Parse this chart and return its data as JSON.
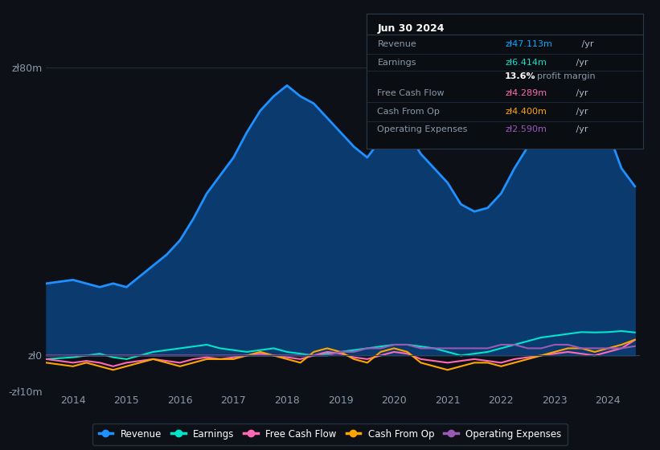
{
  "bg_color": "#0d1117",
  "plot_bg_color": "#0d1b2a",
  "grid_color": "#1e2d40",
  "title_box": {
    "date": "Jun 30 2024",
    "rows": [
      {
        "label": "Revenue",
        "value": "zł47.113m /yr",
        "value_color": "#00aaff"
      },
      {
        "label": "Earnings",
        "value": "zł6.414m /yr",
        "value_color": "#00e5cc"
      },
      {
        "label": "",
        "value": "13.6% profit margin",
        "value_color": "#ffffff"
      },
      {
        "label": "Free Cash Flow",
        "value": "zł4.289m /yr",
        "value_color": "#ff69b4"
      },
      {
        "label": "Cash From Op",
        "value": "zł4.400m /yr",
        "value_color": "#ffa500"
      },
      {
        "label": "Operating Expenses",
        "value": "zł2.590m /yr",
        "value_color": "#9b59b6"
      }
    ]
  },
  "ylim": [
    -10,
    90
  ],
  "yticks": [
    -10,
    0,
    80
  ],
  "ytick_labels": [
    "-zł10m",
    "zł0",
    "zł80m"
  ],
  "xlabel_years": [
    2014,
    2015,
    2016,
    2017,
    2018,
    2019,
    2020,
    2021,
    2022,
    2023,
    2024
  ],
  "series": {
    "revenue": {
      "color": "#1e90ff",
      "fill_color": "#0a3a6e",
      "linewidth": 2.0,
      "label": "Revenue",
      "x": [
        2013.5,
        2014.0,
        2014.25,
        2014.5,
        2014.75,
        2015.0,
        2015.25,
        2015.5,
        2015.75,
        2016.0,
        2016.25,
        2016.5,
        2016.75,
        2017.0,
        2017.25,
        2017.5,
        2017.75,
        2018.0,
        2018.25,
        2018.5,
        2018.75,
        2019.0,
        2019.25,
        2019.5,
        2019.75,
        2020.0,
        2020.25,
        2020.5,
        2020.75,
        2021.0,
        2021.25,
        2021.5,
        2021.75,
        2022.0,
        2022.25,
        2022.5,
        2022.75,
        2023.0,
        2023.25,
        2023.5,
        2023.75,
        2024.0,
        2024.25,
        2024.5
      ],
      "y": [
        20,
        21,
        20,
        19,
        20,
        19,
        22,
        25,
        28,
        32,
        38,
        45,
        50,
        55,
        62,
        68,
        72,
        75,
        72,
        70,
        66,
        62,
        58,
        55,
        60,
        65,
        62,
        56,
        52,
        48,
        42,
        40,
        41,
        45,
        52,
        58,
        62,
        66,
        70,
        72,
        68,
        62,
        52,
        47
      ]
    },
    "earnings": {
      "color": "#00e5cc",
      "linewidth": 1.5,
      "label": "Earnings",
      "x": [
        2013.5,
        2014.0,
        2014.25,
        2014.5,
        2014.75,
        2015.0,
        2015.25,
        2015.5,
        2015.75,
        2016.0,
        2016.25,
        2016.5,
        2016.75,
        2017.0,
        2017.25,
        2017.5,
        2017.75,
        2018.0,
        2018.25,
        2018.5,
        2018.75,
        2019.0,
        2019.25,
        2019.5,
        2019.75,
        2020.0,
        2020.25,
        2020.5,
        2020.75,
        2021.0,
        2021.25,
        2021.5,
        2021.75,
        2022.0,
        2022.25,
        2022.5,
        2022.75,
        2023.0,
        2023.25,
        2023.5,
        2023.75,
        2024.0,
        2024.25,
        2024.5
      ],
      "y": [
        -1,
        -0.5,
        0,
        0.5,
        -0.5,
        -1,
        0,
        1,
        1.5,
        2,
        2.5,
        3,
        2,
        1.5,
        1,
        1.5,
        2,
        1,
        0.5,
        0,
        0.5,
        1,
        1.5,
        2,
        2.5,
        3,
        3,
        2.5,
        2,
        1,
        0,
        0.5,
        1,
        2,
        3,
        4,
        5,
        5.5,
        6,
        6.5,
        6.4,
        6.5,
        6.8,
        6.4
      ]
    },
    "free_cash_flow": {
      "color": "#ff69b4",
      "linewidth": 1.5,
      "label": "Free Cash Flow",
      "x": [
        2013.5,
        2014.0,
        2014.25,
        2014.5,
        2014.75,
        2015.0,
        2015.25,
        2015.5,
        2015.75,
        2016.0,
        2016.25,
        2016.5,
        2016.75,
        2017.0,
        2017.25,
        2017.5,
        2017.75,
        2018.0,
        2018.25,
        2018.5,
        2018.75,
        2019.0,
        2019.25,
        2019.5,
        2019.75,
        2020.0,
        2020.25,
        2020.5,
        2020.75,
        2021.0,
        2021.25,
        2021.5,
        2021.75,
        2022.0,
        2022.25,
        2022.5,
        2022.75,
        2023.0,
        2023.25,
        2023.5,
        2023.75,
        2024.0,
        2024.25,
        2024.5
      ],
      "y": [
        -1,
        -2,
        -1.5,
        -2,
        -3,
        -2,
        -1.5,
        -1,
        -1.5,
        -2,
        -1,
        -0.5,
        -1,
        -0.5,
        0,
        0.5,
        0,
        -0.5,
        -1,
        0,
        1,
        0.5,
        -0.5,
        -1,
        0,
        1,
        0.5,
        -1,
        -1.5,
        -2,
        -1.5,
        -1,
        -1.5,
        -2,
        -1,
        -0.5,
        0,
        0.5,
        1,
        0.5,
        0,
        1,
        2,
        4.3
      ]
    },
    "cash_from_op": {
      "color": "#ffa500",
      "linewidth": 1.5,
      "label": "Cash From Op",
      "x": [
        2013.5,
        2014.0,
        2014.25,
        2014.5,
        2014.75,
        2015.0,
        2015.25,
        2015.5,
        2015.75,
        2016.0,
        2016.25,
        2016.5,
        2016.75,
        2017.0,
        2017.25,
        2017.5,
        2017.75,
        2018.0,
        2018.25,
        2018.5,
        2018.75,
        2019.0,
        2019.25,
        2019.5,
        2019.75,
        2020.0,
        2020.25,
        2020.5,
        2020.75,
        2021.0,
        2021.25,
        2021.5,
        2021.75,
        2022.0,
        2022.25,
        2022.5,
        2022.75,
        2023.0,
        2023.25,
        2023.5,
        2023.75,
        2024.0,
        2024.25,
        2024.5
      ],
      "y": [
        -2,
        -3,
        -2,
        -3,
        -4,
        -3,
        -2,
        -1,
        -2,
        -3,
        -2,
        -1,
        -1,
        -1,
        0,
        1,
        0,
        -1,
        -2,
        1,
        2,
        1,
        -1,
        -2,
        1,
        2,
        1,
        -2,
        -3,
        -4,
        -3,
        -2,
        -2,
        -3,
        -2,
        -1,
        0,
        1,
        2,
        2,
        1,
        2,
        3,
        4.4
      ]
    },
    "operating_expenses": {
      "color": "#9b59b6",
      "linewidth": 1.5,
      "label": "Operating Expenses",
      "x": [
        2013.5,
        2014.0,
        2014.25,
        2014.5,
        2014.75,
        2015.0,
        2015.25,
        2015.5,
        2015.75,
        2016.0,
        2016.25,
        2016.5,
        2016.75,
        2017.0,
        2017.25,
        2017.5,
        2017.75,
        2018.0,
        2018.25,
        2018.5,
        2018.75,
        2019.0,
        2019.25,
        2019.5,
        2019.75,
        2020.0,
        2020.25,
        2020.5,
        2020.75,
        2021.0,
        2021.25,
        2021.5,
        2021.75,
        2022.0,
        2022.25,
        2022.5,
        2022.75,
        2023.0,
        2023.25,
        2023.5,
        2023.75,
        2024.0,
        2024.25,
        2024.5
      ],
      "y": [
        0,
        0,
        0,
        0,
        0,
        0,
        0,
        0,
        0,
        0,
        0,
        0,
        0,
        0,
        0,
        0,
        0,
        0,
        0,
        0,
        0,
        1,
        1,
        2,
        2,
        3,
        3,
        2,
        2,
        2,
        2,
        2,
        2,
        3,
        3,
        2,
        2,
        3,
        3,
        2,
        2,
        2,
        2,
        2.59
      ]
    }
  },
  "legend": [
    {
      "label": "Revenue",
      "color": "#1e90ff"
    },
    {
      "label": "Earnings",
      "color": "#00e5cc"
    },
    {
      "label": "Free Cash Flow",
      "color": "#ff69b4"
    },
    {
      "label": "Cash From Op",
      "color": "#ffa500"
    },
    {
      "label": "Operating Expenses",
      "color": "#9b59b6"
    }
  ]
}
